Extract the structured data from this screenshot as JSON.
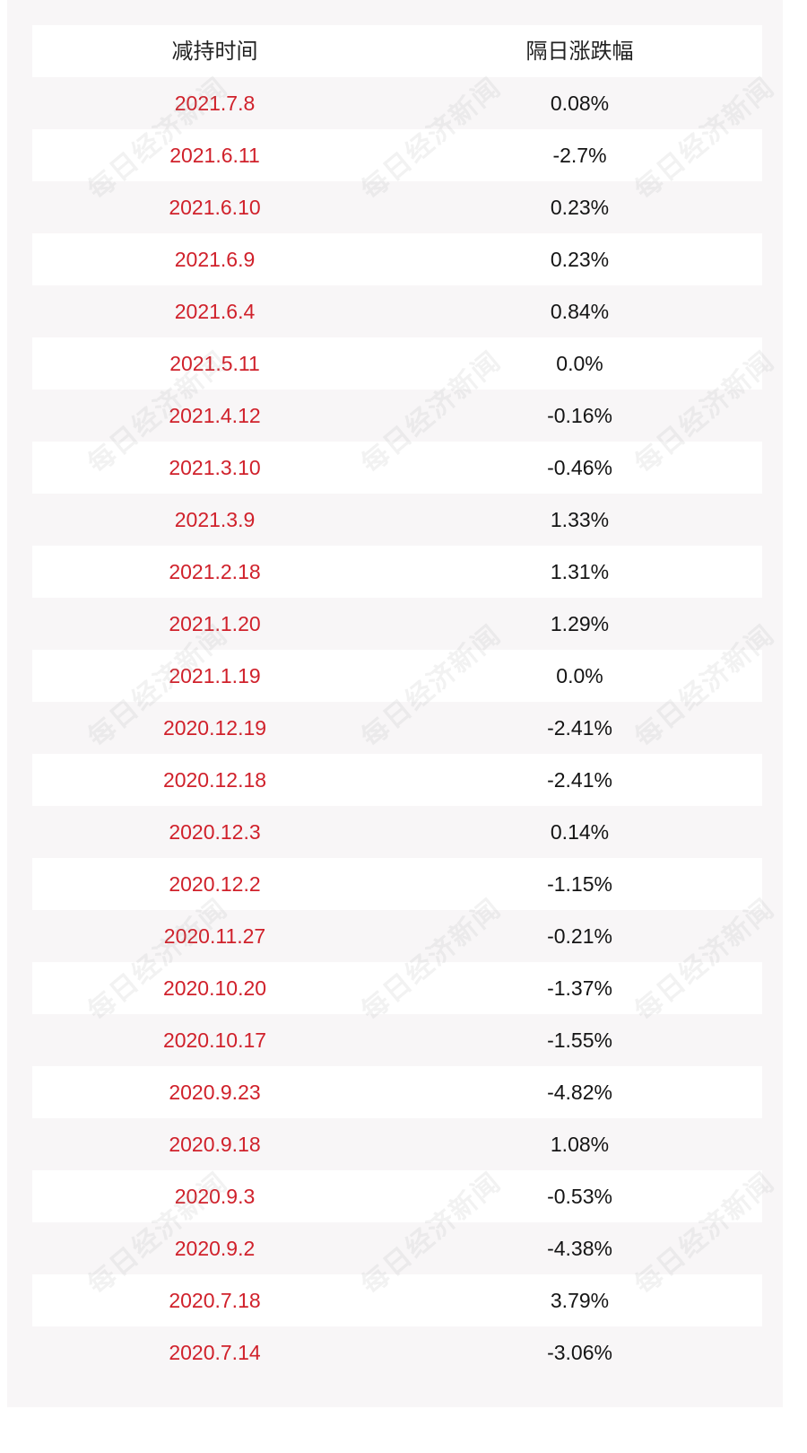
{
  "table": {
    "headers": {
      "date": "减持时间",
      "change": "隔日涨跌幅"
    },
    "rows": [
      {
        "date": "2021.7.8",
        "change": "0.08%"
      },
      {
        "date": "2021.6.11",
        "change": "-2.7%"
      },
      {
        "date": "2021.6.10",
        "change": "0.23%"
      },
      {
        "date": "2021.6.9",
        "change": "0.23%"
      },
      {
        "date": "2021.6.4",
        "change": "0.84%"
      },
      {
        "date": "2021.5.11",
        "change": "0.0%"
      },
      {
        "date": "2021.4.12",
        "change": "-0.16%"
      },
      {
        "date": "2021.3.10",
        "change": "-0.46%"
      },
      {
        "date": "2021.3.9",
        "change": "1.33%"
      },
      {
        "date": "2021.2.18",
        "change": "1.31%"
      },
      {
        "date": "2021.1.20",
        "change": "1.29%"
      },
      {
        "date": "2021.1.19",
        "change": "0.0%"
      },
      {
        "date": "2020.12.19",
        "change": "-2.41%"
      },
      {
        "date": "2020.12.18",
        "change": "-2.41%"
      },
      {
        "date": "2020.12.3",
        "change": "0.14%"
      },
      {
        "date": "2020.12.2",
        "change": "-1.15%"
      },
      {
        "date": "2020.11.27",
        "change": "-0.21%"
      },
      {
        "date": "2020.10.20",
        "change": "-1.37%"
      },
      {
        "date": "2020.10.17",
        "change": "-1.55%"
      },
      {
        "date": "2020.9.23",
        "change": "-4.82%"
      },
      {
        "date": "2020.9.18",
        "change": "1.08%"
      },
      {
        "date": "2020.9.3",
        "change": "-0.53%"
      },
      {
        "date": "2020.9.2",
        "change": "-4.38%"
      },
      {
        "date": "2020.7.18",
        "change": "3.79%"
      },
      {
        "date": "2020.7.14",
        "change": "-3.06%"
      }
    ]
  },
  "watermark": {
    "text": "每日经济新闻"
  },
  "colors": {
    "date_text": "#d0212b",
    "value_text": "#141414",
    "background": "#f8f6f7",
    "row_stripe": "#ffffff"
  }
}
